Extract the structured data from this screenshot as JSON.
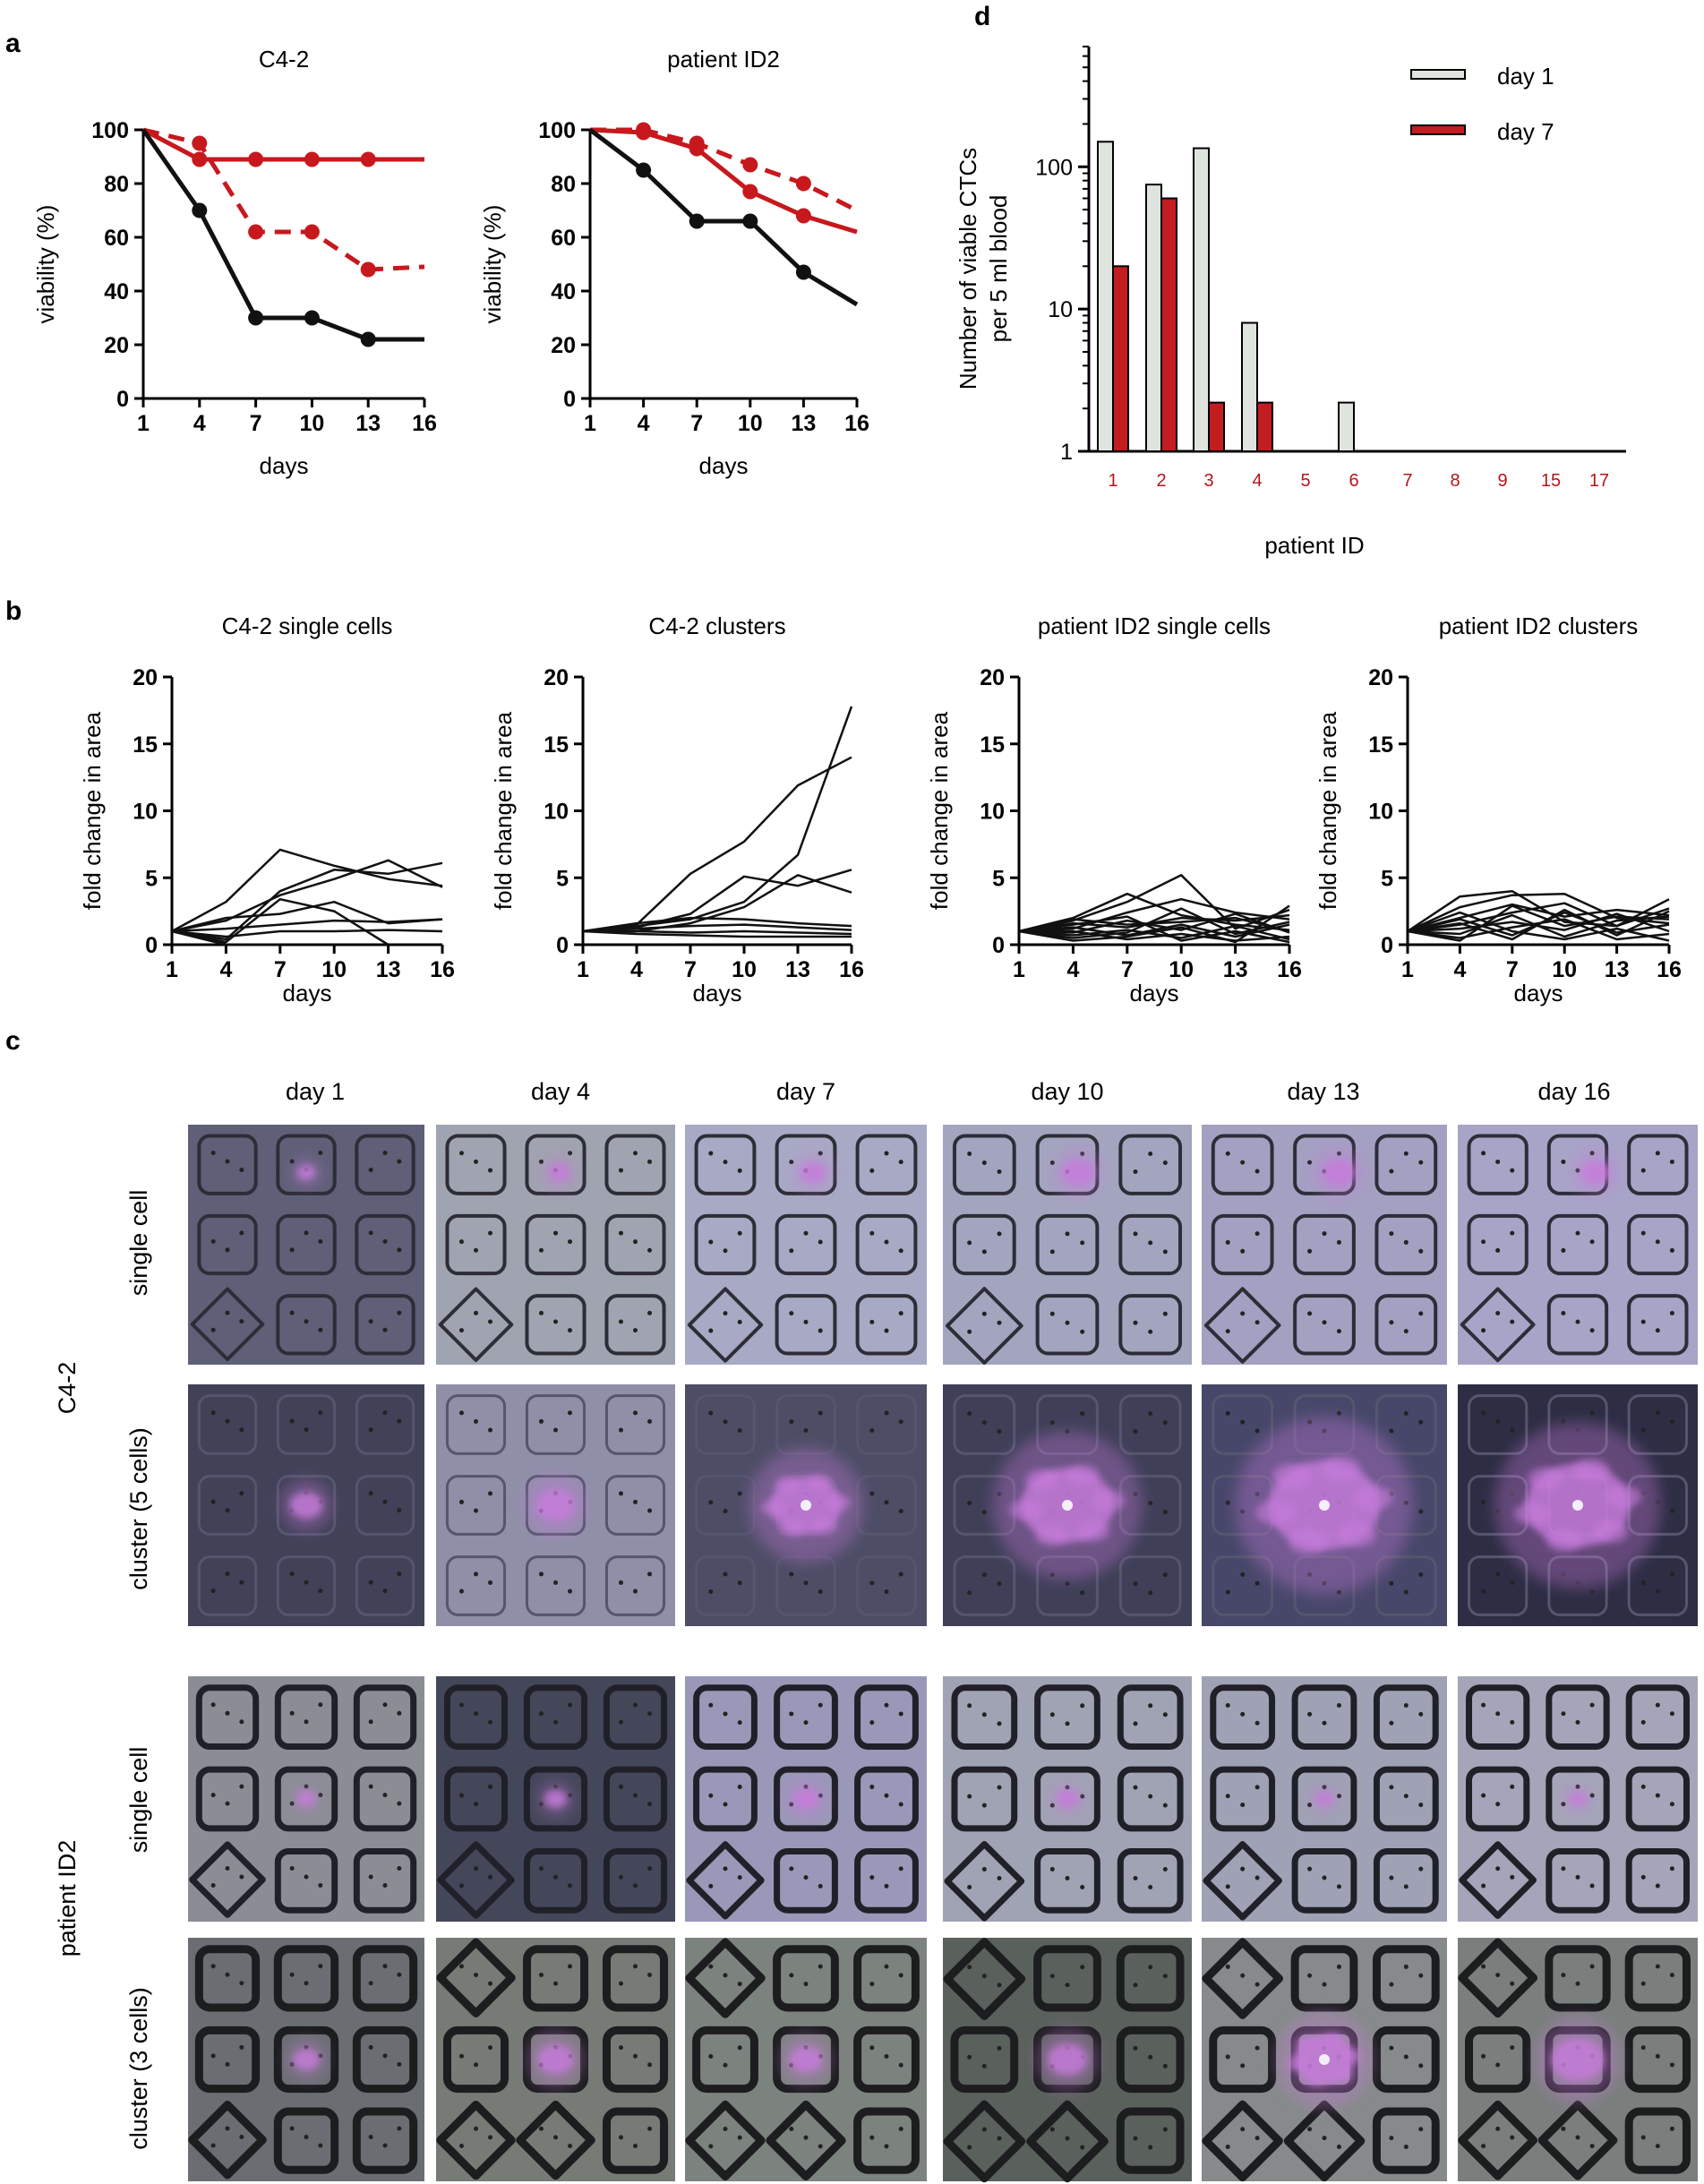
{
  "colors": {
    "red": "#c7181e",
    "black": "#111111",
    "day1_fill": "#e0e4de",
    "day7_fill": "#c21d21",
    "tile_tint": "#8c80b0",
    "tile_square": "#2a2a33",
    "cell_color": "#c77cdc"
  },
  "panel_letters": {
    "a": "a",
    "b": "b",
    "c": "c",
    "d": "d"
  },
  "chart_data": [
    {
      "id": "a1",
      "type": "line",
      "title": "C4-2",
      "xlabel": "days",
      "ylabel": "viability (%)",
      "xlim": [
        1,
        16
      ],
      "ylim": [
        0,
        100
      ],
      "xticks": [
        "1",
        "4",
        "7",
        "10",
        "13",
        "16"
      ],
      "yticks": [
        "0",
        "20",
        "40",
        "60",
        "80",
        "100"
      ],
      "series": [
        {
          "name": "red solid",
          "color": "#c7181e",
          "dash": false,
          "x": [
            1,
            4,
            7,
            10,
            13,
            16
          ],
          "y": [
            100,
            89,
            89,
            89,
            89,
            89
          ],
          "markers": [
            4,
            7,
            10,
            13
          ]
        },
        {
          "name": "red dashed",
          "color": "#c7181e",
          "dash": true,
          "x": [
            1,
            4,
            7,
            10,
            13,
            16
          ],
          "y": [
            100,
            95,
            62,
            62,
            48,
            49
          ],
          "markers": [
            4,
            7,
            10,
            13
          ]
        },
        {
          "name": "black",
          "color": "#111111",
          "dash": false,
          "x": [
            1,
            4,
            7,
            10,
            13,
            16
          ],
          "y": [
            100,
            70,
            30,
            30,
            22,
            22
          ],
          "markers": [
            4,
            7,
            10,
            13
          ]
        }
      ]
    },
    {
      "id": "a2",
      "type": "line",
      "title": "patient ID2",
      "xlabel": "days",
      "ylabel": "viability (%)",
      "xlim": [
        1,
        16
      ],
      "ylim": [
        0,
        100
      ],
      "xticks": [
        "1",
        "4",
        "7",
        "10",
        "13",
        "16"
      ],
      "yticks": [
        "0",
        "20",
        "40",
        "60",
        "80",
        "100"
      ],
      "series": [
        {
          "name": "red dashed",
          "color": "#c7181e",
          "dash": true,
          "x": [
            1,
            4,
            7,
            10,
            13,
            16
          ],
          "y": [
            100,
            100,
            95,
            87,
            80,
            70
          ],
          "markers": [
            4,
            7,
            10,
            13
          ]
        },
        {
          "name": "red solid",
          "color": "#c7181e",
          "dash": false,
          "x": [
            1,
            4,
            7,
            10,
            13,
            16
          ],
          "y": [
            100,
            99,
            93,
            77,
            68,
            62
          ],
          "markers": [
            4,
            7,
            10,
            13
          ]
        },
        {
          "name": "black",
          "color": "#111111",
          "dash": false,
          "x": [
            1,
            4,
            7,
            10,
            13,
            16
          ],
          "y": [
            100,
            85,
            66,
            66,
            47,
            35
          ],
          "markers": [
            4,
            7,
            10,
            13
          ]
        }
      ]
    },
    {
      "id": "d",
      "type": "bar",
      "title": "",
      "xlabel": "patient ID",
      "ylabel": "Number of viable CTCs",
      "ylabel2": "per 5 ml blood",
      "yscale": "log",
      "ylim": [
        1,
        700
      ],
      "yticks": [
        "1",
        "10",
        "100"
      ],
      "categories": [
        "1",
        "2",
        "3",
        "4",
        "5",
        "6",
        "7",
        "8",
        "9",
        "15",
        "17"
      ],
      "series": [
        {
          "name": "day 1",
          "values": [
            150,
            75,
            135,
            8,
            1,
            2.2,
            1,
            1,
            1,
            1,
            1
          ]
        },
        {
          "name": "day 7",
          "values": [
            20,
            60,
            2.2,
            2.2,
            1,
            1,
            1,
            1,
            1,
            1,
            1
          ]
        }
      ],
      "legend": [
        "day 1",
        "day 7"
      ]
    },
    {
      "id": "b1",
      "type": "line",
      "title": "C4-2 single cells",
      "xlabel": "days",
      "ylabel": "fold change in area",
      "xlim": [
        1,
        16
      ],
      "ylim": [
        0,
        20
      ],
      "xticks": [
        "1",
        "4",
        "7",
        "10",
        "13",
        "16"
      ],
      "yticks": [
        "0",
        "5",
        "10",
        "15",
        "20"
      ],
      "series": [
        {
          "x": [
            1,
            4,
            7,
            10,
            13,
            16
          ],
          "y": [
            1,
            3.2,
            7.1,
            5.9,
            4.9,
            4.4
          ]
        },
        {
          "x": [
            1,
            4,
            7,
            10,
            13,
            16
          ],
          "y": [
            1,
            0.4,
            4.0,
            5.6,
            5.3,
            6.1
          ]
        },
        {
          "x": [
            1,
            4,
            7,
            10,
            13,
            16
          ],
          "y": [
            1,
            1.8,
            3.7,
            4.9,
            6.3,
            4.3
          ]
        },
        {
          "x": [
            1,
            4,
            7,
            10,
            13,
            16
          ],
          "y": [
            1,
            2.0,
            2.3,
            3.2,
            1.6,
            1.9
          ]
        },
        {
          "x": [
            1,
            4,
            7,
            10,
            13,
            16
          ],
          "y": [
            1,
            1.2,
            1.5,
            1.8,
            1.7,
            1.9
          ]
        },
        {
          "x": [
            1,
            4,
            7,
            10,
            13,
            16
          ],
          "y": [
            1,
            0.6,
            1.0,
            1.0,
            1.1,
            1.0
          ]
        },
        {
          "x": [
            1,
            4,
            7,
            10,
            13
          ],
          "y": [
            1,
            0.2,
            3.4,
            2.5,
            0.0
          ]
        },
        {
          "x": [
            1,
            4,
            7
          ],
          "y": [
            1,
            0.0,
            0.0
          ]
        },
        {
          "x": [
            1,
            4
          ],
          "y": [
            1,
            0.1
          ]
        }
      ]
    },
    {
      "id": "b2",
      "type": "line",
      "title": "C4-2 clusters",
      "xlabel": "days",
      "ylabel": "fold change in area",
      "xlim": [
        1,
        16
      ],
      "ylim": [
        0,
        20
      ],
      "xticks": [
        "1",
        "4",
        "7",
        "10",
        "13",
        "16"
      ],
      "yticks": [
        "0",
        "5",
        "10",
        "15",
        "20"
      ],
      "series": [
        {
          "x": [
            1,
            4,
            7,
            10,
            13,
            16
          ],
          "y": [
            1,
            1.5,
            5.3,
            7.7,
            11.9,
            14.0
          ]
        },
        {
          "x": [
            1,
            4,
            7,
            10,
            13,
            16
          ],
          "y": [
            1,
            1.4,
            1.9,
            3.2,
            6.7,
            17.8
          ]
        },
        {
          "x": [
            1,
            4,
            7,
            10,
            13,
            16
          ],
          "y": [
            1,
            1.3,
            2.3,
            5.1,
            4.4,
            5.6
          ]
        },
        {
          "x": [
            1,
            4,
            7,
            10,
            13,
            16
          ],
          "y": [
            1,
            1.0,
            1.6,
            2.8,
            5.2,
            3.9
          ]
        },
        {
          "x": [
            1,
            4,
            7,
            10,
            13,
            16
          ],
          "y": [
            1,
            1.6,
            2.0,
            1.9,
            1.6,
            1.4
          ]
        },
        {
          "x": [
            1,
            4,
            7,
            10,
            13,
            16
          ],
          "y": [
            1,
            1.2,
            1.4,
            1.5,
            1.3,
            1.1
          ]
        },
        {
          "x": [
            1,
            4,
            7,
            10,
            13,
            16
          ],
          "y": [
            1,
            1.0,
            0.9,
            1.0,
            0.9,
            0.8
          ]
        },
        {
          "x": [
            1,
            4,
            7,
            10,
            13,
            16
          ],
          "y": [
            1,
            0.8,
            0.7,
            0.6,
            0.6,
            0.6
          ]
        }
      ]
    },
    {
      "id": "b3",
      "type": "line",
      "title": "patient ID2 single cells",
      "xlabel": "days",
      "ylabel": "fold change in area",
      "xlim": [
        1,
        16
      ],
      "ylim": [
        0,
        20
      ],
      "xticks": [
        "1",
        "4",
        "7",
        "10",
        "13",
        "16"
      ],
      "yticks": [
        "0",
        "5",
        "10",
        "15",
        "20"
      ],
      "series": [
        {
          "x": [
            1,
            4,
            7,
            10,
            13,
            16
          ],
          "y": [
            1,
            1.8,
            3.2,
            5.2,
            1.2,
            2.6
          ]
        },
        {
          "x": [
            1,
            4,
            7,
            10,
            13,
            16
          ],
          "y": [
            1,
            2.0,
            3.8,
            2.2,
            1.5,
            1.1
          ]
        },
        {
          "x": [
            1,
            4,
            7,
            10,
            13,
            16
          ],
          "y": [
            1,
            1.2,
            2.4,
            3.4,
            2.4,
            1.9
          ]
        },
        {
          "x": [
            1,
            4,
            7,
            10,
            13,
            16
          ],
          "y": [
            1,
            1.6,
            1.3,
            2.0,
            1.8,
            2.2
          ]
        },
        {
          "x": [
            1,
            4,
            7,
            10,
            13,
            16
          ],
          "y": [
            1,
            0.9,
            1.8,
            1.1,
            2.3,
            0.9
          ]
        },
        {
          "x": [
            1,
            4,
            7,
            10,
            13,
            16
          ],
          "y": [
            1,
            1.3,
            0.7,
            1.5,
            0.6,
            1.5
          ]
        },
        {
          "x": [
            1,
            4,
            7,
            10,
            13,
            16
          ],
          "y": [
            1,
            0.7,
            1.1,
            0.5,
            1.4,
            0.4
          ]
        },
        {
          "x": [
            1,
            4,
            7,
            10,
            13,
            16
          ],
          "y": [
            1,
            0.5,
            0.9,
            2.7,
            0.8,
            1.7
          ]
        },
        {
          "x": [
            1,
            4,
            7,
            10,
            13,
            16
          ],
          "y": [
            1,
            1.0,
            0.4,
            0.8,
            0.3,
            0.6
          ]
        },
        {
          "x": [
            1,
            4,
            7,
            10,
            13,
            16
          ],
          "y": [
            1,
            1.5,
            2.1,
            0.3,
            1.0,
            0.2
          ]
        },
        {
          "x": [
            1,
            4,
            7,
            10,
            13,
            16
          ],
          "y": [
            1,
            0.3,
            0.6,
            1.3,
            0.2,
            2.9
          ]
        },
        {
          "x": [
            1,
            4,
            7,
            10,
            13,
            16
          ],
          "y": [
            1,
            1.9,
            1.5,
            1.7,
            2.0,
            1.0
          ]
        }
      ]
    },
    {
      "id": "b4",
      "type": "line",
      "title": "patient ID2 clusters",
      "xlabel": "days",
      "ylabel": "fold change in area",
      "xlim": [
        1,
        16
      ],
      "ylim": [
        0,
        20
      ],
      "xticks": [
        "1",
        "4",
        "7",
        "10",
        "13",
        "16"
      ],
      "yticks": [
        "0",
        "5",
        "10",
        "15",
        "20"
      ],
      "series": [
        {
          "x": [
            1,
            4,
            7,
            10,
            13,
            16
          ],
          "y": [
            1,
            3.6,
            4.0,
            1.7,
            1.4,
            3.4
          ]
        },
        {
          "x": [
            1,
            4,
            7,
            10,
            13,
            16
          ],
          "y": [
            1,
            2.8,
            3.7,
            3.8,
            2.0,
            1.6
          ]
        },
        {
          "x": [
            1,
            4,
            7,
            10,
            13,
            16
          ],
          "y": [
            1,
            2.0,
            3.0,
            2.1,
            2.6,
            2.2
          ]
        },
        {
          "x": [
            1,
            4,
            7,
            10,
            13,
            16
          ],
          "y": [
            1,
            1.5,
            2.4,
            3.1,
            1.4,
            2.7
          ]
        },
        {
          "x": [
            1,
            4,
            7,
            10,
            13,
            16
          ],
          "y": [
            1,
            1.2,
            1.7,
            1.1,
            2.3,
            1.0
          ]
        },
        {
          "x": [
            1,
            4,
            7,
            10,
            13,
            16
          ],
          "y": [
            1,
            0.8,
            2.2,
            0.6,
            1.8,
            2.1
          ]
        },
        {
          "x": [
            1,
            4,
            7,
            10,
            13,
            16
          ],
          "y": [
            1,
            1.9,
            0.7,
            2.4,
            0.9,
            1.5
          ]
        },
        {
          "x": [
            1,
            4,
            7,
            10,
            13,
            16
          ],
          "y": [
            1,
            0.5,
            1.3,
            1.9,
            0.4,
            0.8
          ]
        },
        {
          "x": [
            1,
            4,
            7,
            10,
            13,
            16
          ],
          "y": [
            1,
            2.4,
            1.0,
            0.4,
            1.2,
            0.3
          ]
        },
        {
          "x": [
            1,
            4,
            7,
            10,
            13,
            16
          ],
          "y": [
            1,
            0.3,
            2.9,
            1.4,
            2.1,
            1.9
          ]
        },
        {
          "x": [
            1,
            4,
            7,
            10,
            13,
            16
          ],
          "y": [
            1,
            1.6,
            0.4,
            2.6,
            0.7,
            2.5
          ]
        }
      ]
    }
  ],
  "micrographs": {
    "column_titles": [
      "day 1",
      "day 4",
      "day 7",
      "day 10",
      "day 13",
      "day 16"
    ],
    "group_labels": [
      "C4-2",
      "patient ID2"
    ],
    "row_labels": [
      "single cell",
      "cluster (5 cells)",
      "single cell",
      "cluster (3 cells)"
    ]
  }
}
